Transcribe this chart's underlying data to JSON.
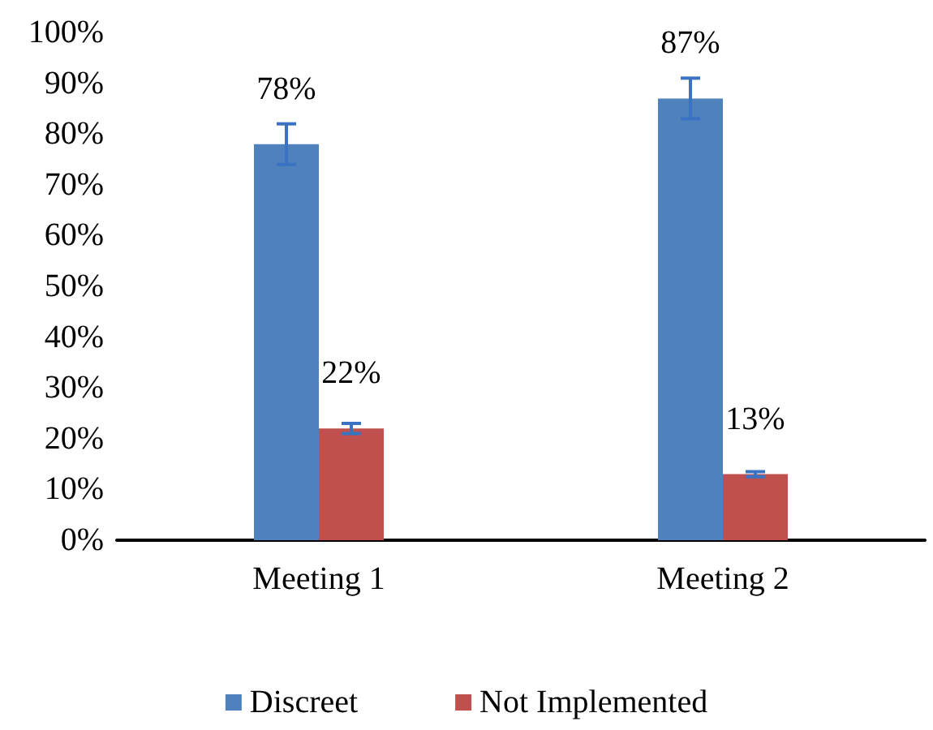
{
  "chart_data": {
    "type": "bar",
    "categories": [
      "Meeting 1",
      "Meeting 2"
    ],
    "series": [
      {
        "name": "Discreet",
        "color": "#4f81bd",
        "values": [
          78,
          87
        ],
        "errors": [
          4,
          4
        ],
        "value_labels": [
          "78%",
          "87%"
        ]
      },
      {
        "name": "Not Implemented",
        "color": "#c0504d",
        "values": [
          22,
          13
        ],
        "errors": [
          1,
          0.5
        ],
        "value_labels": [
          "22%",
          "13%"
        ]
      }
    ],
    "ylim": [
      0,
      100
    ],
    "yticks": [
      {
        "value": 0,
        "label": "0%"
      },
      {
        "value": 10,
        "label": "10%"
      },
      {
        "value": 20,
        "label": "20%"
      },
      {
        "value": 30,
        "label": "30%"
      },
      {
        "value": 40,
        "label": "40%"
      },
      {
        "value": 50,
        "label": "50%"
      },
      {
        "value": 60,
        "label": "60%"
      },
      {
        "value": 70,
        "label": "70%"
      },
      {
        "value": 80,
        "label": "80%"
      },
      {
        "value": 90,
        "label": "90%"
      },
      {
        "value": 100,
        "label": "100%"
      }
    ],
    "grid": false,
    "legend": "bottom"
  }
}
